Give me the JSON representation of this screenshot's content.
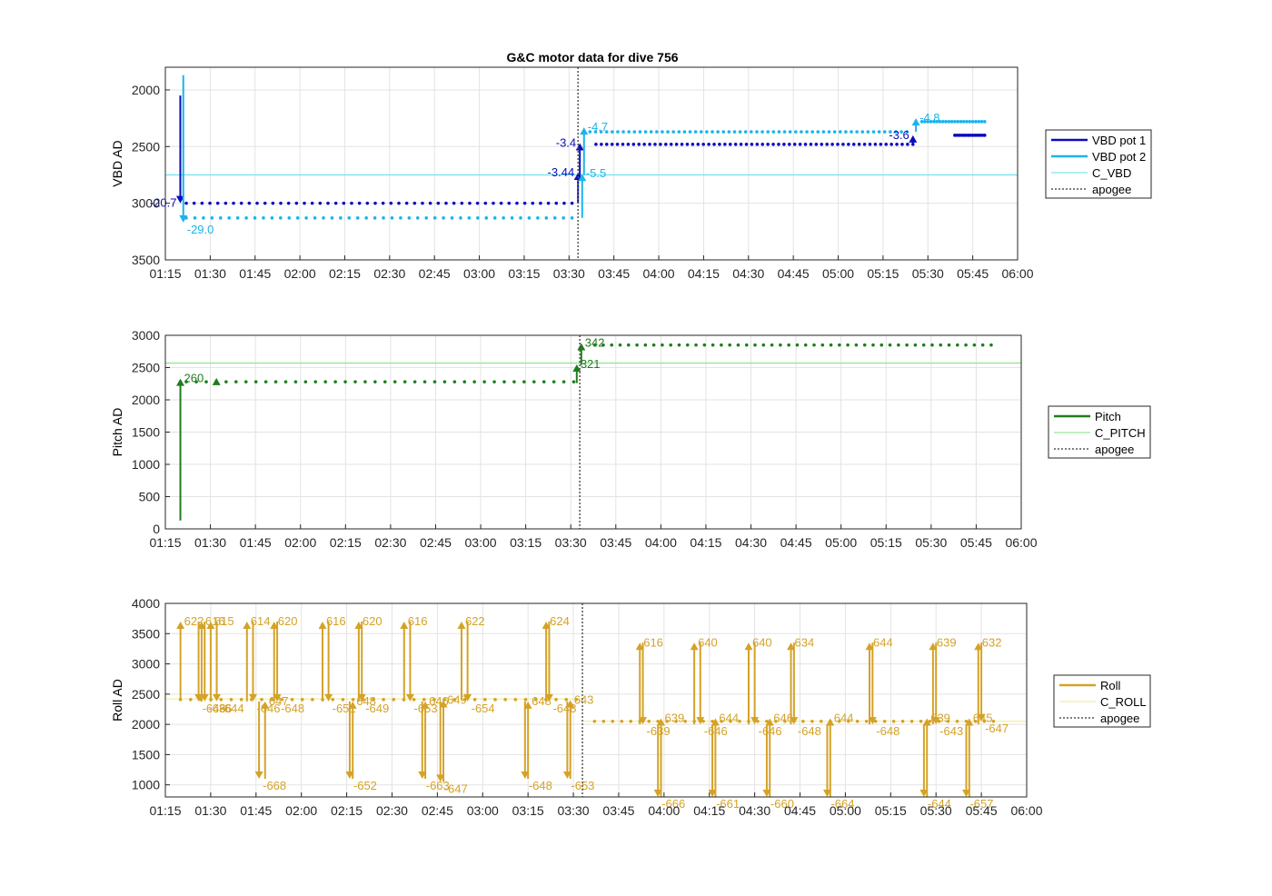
{
  "figure_title": "G&C motor data for dive 756",
  "x_tick_labels": [
    "01:15",
    "01:30",
    "01:45",
    "02:00",
    "02:15",
    "02:30",
    "02:45",
    "03:00",
    "03:15",
    "03:30",
    "03:45",
    "04:00",
    "04:15",
    "04:30",
    "04:45",
    "05:00",
    "05:15",
    "05:30",
    "05:45",
    "06:00"
  ],
  "apogee_time": "03:33",
  "colors": {
    "vbd_pot1": "#0b0bbf",
    "vbd_pot2": "#1ab4ee",
    "c_vbd": "#5fe0ec",
    "pitch": "#1e7d1e",
    "c_pitch": "#7fe07f",
    "roll": "#d4a227",
    "c_roll": "#f3ea8a",
    "apogee": "#555555",
    "grid": "#e3e3e3",
    "axis": "#262626"
  },
  "chart_data": [
    {
      "type": "scatter",
      "id": "vbd",
      "title": "G&C motor data for dive 756",
      "xlabel": "",
      "ylabel": "VBD AD",
      "xlim": [
        "01:15",
        "06:00"
      ],
      "ylim": [
        3500,
        1800
      ],
      "y_reversed": true,
      "yticks": [
        "2000",
        "2500",
        "3000",
        "3500"
      ],
      "grid": true,
      "legend_position": "right",
      "legend": [
        "VBD pot 1",
        "VBD pot 2",
        "C_VBD",
        "apogee"
      ],
      "reference_line": {
        "name": "C_VBD",
        "y": 2750
      },
      "series": [
        {
          "name": "VBD pot 1",
          "segments": [
            {
              "x": [
                "01:22",
                "03:31"
              ],
              "y": 3000,
              "n": 50
            },
            {
              "x": [
                "03:39",
                "05:25"
              ],
              "y": 2480,
              "n": 60
            },
            {
              "x": [
                "05:39",
                "05:49"
              ],
              "y": 2400,
              "n": 14
            }
          ]
        },
        {
          "name": "VBD pot 2",
          "segments": [
            {
              "x": [
                "01:22",
                "03:31"
              ],
              "y": 3130,
              "n": 46
            },
            {
              "x": [
                "03:37",
                "05:23"
              ],
              "y": 2370,
              "n": 58
            },
            {
              "x": [
                "05:28",
                "05:49"
              ],
              "y": 2280,
              "n": 22
            }
          ]
        }
      ],
      "moves": [
        {
          "series": "VBD pot 1",
          "t": "01:20",
          "from": 2050,
          "to": 3000,
          "label": "-20.7"
        },
        {
          "series": "VBD pot 2",
          "t": "01:21",
          "from": 1870,
          "to": 3170,
          "label": "-29.0"
        },
        {
          "series": "VBD pot 1",
          "t": "03:33",
          "from": 3000,
          "to": 2730,
          "label": "-3.44"
        },
        {
          "series": "VBD pot 1",
          "t": "03:33.6",
          "from": 2780,
          "to": 2470,
          "label": "-3.4"
        },
        {
          "series": "VBD pot 2",
          "t": "03:34.4",
          "from": 3130,
          "to": 2740,
          "label": "-5.5"
        },
        {
          "series": "VBD pot 2",
          "t": "03:35",
          "from": 2750,
          "to": 2330,
          "label": "-4.7"
        },
        {
          "series": "VBD pot 1",
          "t": "05:25",
          "from": 2480,
          "to": 2400,
          "label": "-3.6"
        },
        {
          "series": "VBD pot 2",
          "t": "05:26",
          "from": 2370,
          "to": 2250,
          "label": "-4.8"
        }
      ]
    },
    {
      "type": "scatter",
      "id": "pitch",
      "xlabel": "",
      "ylabel": "Pitch AD",
      "xlim": [
        "01:15",
        "06:00"
      ],
      "ylim": [
        0,
        3000
      ],
      "yticks": [
        "0",
        "500",
        "1000",
        "1500",
        "2000",
        "2500",
        "3000"
      ],
      "grid": true,
      "legend_position": "right",
      "legend": [
        "Pitch",
        "C_PITCH",
        "apogee"
      ],
      "reference_line": {
        "name": "C_PITCH",
        "y": 2570
      },
      "series": [
        {
          "name": "Pitch",
          "segments": [
            {
              "x": [
                "01:22",
                "03:31"
              ],
              "y": 2280,
              "n": 40
            },
            {
              "x": [
                "03:38",
                "05:50"
              ],
              "y": 2850,
              "n": 48
            }
          ]
        }
      ],
      "moves": [
        {
          "series": "Pitch",
          "t": "01:20",
          "from": 130,
          "to": 2330,
          "label": "260"
        },
        {
          "series": "Pitch",
          "t": "01:32",
          "from": 2280,
          "to": 2340,
          "label": ""
        },
        {
          "series": "Pitch",
          "t": "03:32",
          "from": 2260,
          "to": 2550,
          "label": "321"
        },
        {
          "series": "Pitch",
          "t": "03:33.5",
          "from": 2540,
          "to": 2880,
          "label": "342"
        }
      ]
    },
    {
      "type": "scatter",
      "id": "roll",
      "xlabel": "",
      "ylabel": "Roll AD",
      "xlim": [
        "01:15",
        "06:00"
      ],
      "ylim": [
        800,
        4000
      ],
      "yticks": [
        "1000",
        "1500",
        "2000",
        "2500",
        "3000",
        "3500",
        "4000"
      ],
      "grid": true,
      "legend_position": "right",
      "legend": [
        "Roll",
        "C_ROLL",
        "apogee"
      ],
      "reference_lines": [
        {
          "name": "C_ROLL",
          "x": [
            "01:15",
            "03:33"
          ],
          "y": 2420
        },
        {
          "name": "C_ROLL",
          "x": [
            "03:33",
            "06:00"
          ],
          "y": 2050
        }
      ],
      "series": [
        {
          "name": "Roll",
          "segments": [
            {
              "x": [
                "01:20",
                "03:31"
              ],
              "y": 2410,
              "n": 40
            },
            {
              "x": [
                "03:37",
                "05:49"
              ],
              "y": 2050,
              "n": 45
            }
          ]
        }
      ],
      "moves": [
        {
          "t": "01:20",
          "from": 2420,
          "to": 3700,
          "label": "622"
        },
        {
          "t": "01:26",
          "from": 3700,
          "to": 2380,
          "label": "-646"
        },
        {
          "t": "01:27",
          "from": 2380,
          "to": 3700,
          "label": "616"
        },
        {
          "t": "01:28",
          "from": 3700,
          "to": 2380,
          "label": "-636"
        },
        {
          "t": "01:30",
          "from": 2380,
          "to": 3700,
          "label": "615"
        },
        {
          "t": "01:32",
          "from": 3700,
          "to": 2380,
          "label": "-644"
        },
        {
          "t": "01:42",
          "from": 2380,
          "to": 3700,
          "label": "614"
        },
        {
          "t": "01:44",
          "from": 3700,
          "to": 2380,
          "label": "-646"
        },
        {
          "t": "01:46",
          "from": 2380,
          "to": 1100,
          "label": "-668"
        },
        {
          "t": "01:48",
          "from": 1100,
          "to": 2380,
          "label": "647"
        },
        {
          "t": "01:51",
          "from": 2380,
          "to": 3700,
          "label": "620"
        },
        {
          "t": "01:52",
          "from": 3700,
          "to": 2380,
          "label": "-648"
        },
        {
          "t": "02:07",
          "from": 2380,
          "to": 3700,
          "label": "616"
        },
        {
          "t": "02:09",
          "from": 3700,
          "to": 2380,
          "label": "-651"
        },
        {
          "t": "02:16",
          "from": 2380,
          "to": 1100,
          "label": "-652"
        },
        {
          "t": "02:17",
          "from": 1100,
          "to": 2380,
          "label": "648"
        },
        {
          "t": "02:19",
          "from": 2380,
          "to": 3700,
          "label": "620"
        },
        {
          "t": "02:20",
          "from": 3700,
          "to": 2380,
          "label": "-649"
        },
        {
          "t": "02:34",
          "from": 2380,
          "to": 3700,
          "label": "616"
        },
        {
          "t": "02:36",
          "from": 3700,
          "to": 2380,
          "label": "-653"
        },
        {
          "t": "02:40",
          "from": 2380,
          "to": 1100,
          "label": "-663"
        },
        {
          "t": "02:41",
          "from": 1100,
          "to": 2380,
          "label": "646"
        },
        {
          "t": "02:46",
          "from": 2380,
          "to": 1050,
          "label": "-647"
        },
        {
          "t": "02:47",
          "from": 1050,
          "to": 2400,
          "label": "649"
        },
        {
          "t": "02:53",
          "from": 2400,
          "to": 3700,
          "label": "622"
        },
        {
          "t": "02:55",
          "from": 3700,
          "to": 2380,
          "label": "-654"
        },
        {
          "t": "03:14",
          "from": 2380,
          "to": 1100,
          "label": "-648"
        },
        {
          "t": "03:15",
          "from": 1100,
          "to": 2380,
          "label": "648"
        },
        {
          "t": "03:21",
          "from": 2380,
          "to": 3700,
          "label": "624"
        },
        {
          "t": "03:22",
          "from": 3700,
          "to": 2380,
          "label": "-648"
        },
        {
          "t": "03:28",
          "from": 2380,
          "to": 1100,
          "label": "-653"
        },
        {
          "t": "03:29",
          "from": 1100,
          "to": 2400,
          "label": "643"
        },
        {
          "t": "03:52",
          "from": 2000,
          "to": 3350,
          "label": "616"
        },
        {
          "t": "03:53",
          "from": 3350,
          "to": 2000,
          "label": "-639"
        },
        {
          "t": "03:58",
          "from": 2000,
          "to": 800,
          "label": "-666"
        },
        {
          "t": "03:59",
          "from": 800,
          "to": 2100,
          "label": "639"
        },
        {
          "t": "04:10",
          "from": 2000,
          "to": 3350,
          "label": "640"
        },
        {
          "t": "04:12",
          "from": 3350,
          "to": 2000,
          "label": "-646"
        },
        {
          "t": "04:16",
          "from": 2000,
          "to": 800,
          "label": "-661"
        },
        {
          "t": "04:17",
          "from": 800,
          "to": 2100,
          "label": "644"
        },
        {
          "t": "04:28",
          "from": 2000,
          "to": 3350,
          "label": "640"
        },
        {
          "t": "04:30",
          "from": 3350,
          "to": 2000,
          "label": "-646"
        },
        {
          "t": "04:34",
          "from": 2000,
          "to": 800,
          "label": "-660"
        },
        {
          "t": "04:35",
          "from": 800,
          "to": 2100,
          "label": "646"
        },
        {
          "t": "04:42",
          "from": 2000,
          "to": 3350,
          "label": "634"
        },
        {
          "t": "04:43",
          "from": 3350,
          "to": 2000,
          "label": "-648"
        },
        {
          "t": "04:54",
          "from": 2000,
          "to": 800,
          "label": "-664"
        },
        {
          "t": "04:55",
          "from": 800,
          "to": 2100,
          "label": "644"
        },
        {
          "t": "05:08",
          "from": 2000,
          "to": 3350,
          "label": "644"
        },
        {
          "t": "05:09",
          "from": 3350,
          "to": 2000,
          "label": "-648"
        },
        {
          "t": "05:26",
          "from": 2000,
          "to": 800,
          "label": "-644"
        },
        {
          "t": "05:27",
          "from": 800,
          "to": 2100,
          "label": "639"
        },
        {
          "t": "05:29",
          "from": 2000,
          "to": 3350,
          "label": "639"
        },
        {
          "t": "05:30",
          "from": 3350,
          "to": 2000,
          "label": "-643"
        },
        {
          "t": "05:40",
          "from": 2000,
          "to": 800,
          "label": "-657"
        },
        {
          "t": "05:41",
          "from": 800,
          "to": 2100,
          "label": "645"
        },
        {
          "t": "05:44",
          "from": 2000,
          "to": 3350,
          "label": "632"
        },
        {
          "t": "05:45",
          "from": 3350,
          "to": 2050,
          "label": "-647"
        }
      ]
    }
  ]
}
